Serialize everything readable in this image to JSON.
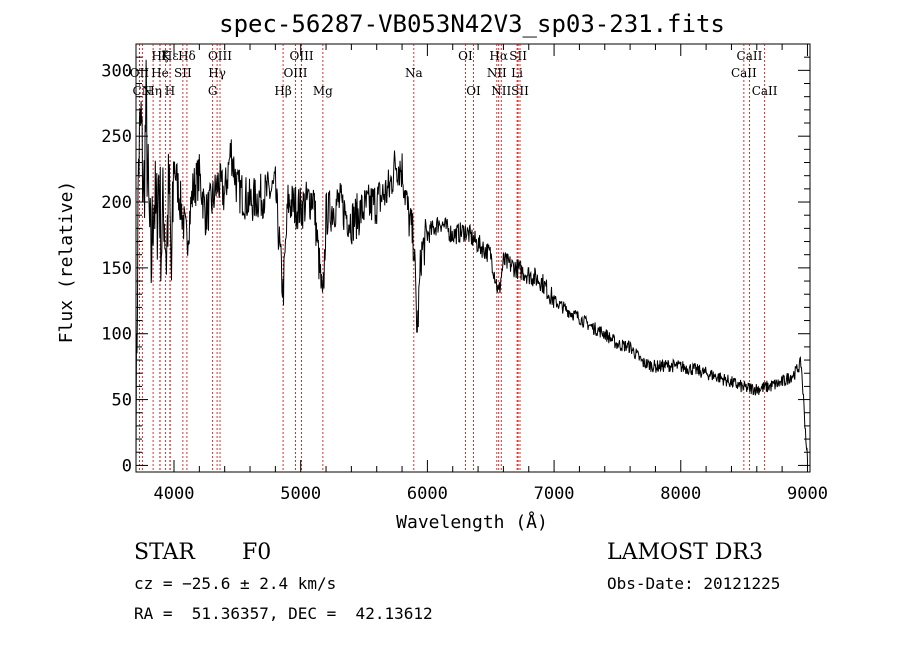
{
  "chart_data": {
    "type": "line",
    "title": "spec-56287-VB053N42V3_sp03-231.fits",
    "xlabel": "Wavelength (Å)",
    "ylabel": "Flux (relative)",
    "xlim": [
      3700,
      9020
    ],
    "ylim": [
      -5,
      320
    ],
    "xticks": [
      4000,
      5000,
      6000,
      7000,
      8000,
      9000
    ],
    "yticks": [
      0,
      50,
      100,
      150,
      200,
      250,
      300
    ],
    "line_color": "#000000",
    "marker_color": "#cc0000",
    "spectrum": {
      "x": [
        3700,
        3720,
        3740,
        3760,
        3780,
        3800,
        3820,
        3840,
        3860,
        3880,
        3900,
        3920,
        3940,
        3960,
        3980,
        4000,
        4050,
        4100,
        4150,
        4200,
        4250,
        4300,
        4350,
        4400,
        4450,
        4500,
        4600,
        4700,
        4800,
        4861,
        4900,
        5000,
        5100,
        5175,
        5200,
        5300,
        5400,
        5500,
        5600,
        5700,
        5750,
        5800,
        5850,
        5893,
        5920,
        5950,
        6000,
        6100,
        6200,
        6300,
        6400,
        6500,
        6563,
        6600,
        6700,
        6800,
        6900,
        7000,
        7100,
        7200,
        7300,
        7400,
        7500,
        7600,
        7700,
        7800,
        7900,
        8000,
        8100,
        8200,
        8300,
        8400,
        8500,
        8600,
        8700,
        8800,
        8900,
        8950,
        9000
      ],
      "y": [
        20,
        230,
        260,
        200,
        270,
        190,
        150,
        210,
        180,
        220,
        170,
        200,
        160,
        210,
        140,
        230,
        200,
        170,
        210,
        220,
        190,
        200,
        215,
        205,
        240,
        210,
        200,
        205,
        210,
        130,
        200,
        195,
        205,
        120,
        190,
        200,
        185,
        195,
        200,
        210,
        230,
        225,
        190,
        170,
        100,
        160,
        175,
        185,
        175,
        178,
        168,
        160,
        130,
        155,
        150,
        145,
        140,
        125,
        118,
        112,
        105,
        100,
        92,
        90,
        78,
        75,
        76,
        75,
        73,
        70,
        67,
        63,
        59,
        58,
        60,
        63,
        70,
        78,
        3
      ]
    },
    "lines": [
      {
        "label": "Hε",
        "wave": 3970,
        "row": 1
      },
      {
        "label": "OII",
        "wave": 3727,
        "row": 2
      },
      {
        "label": "CN",
        "wave": 3750,
        "row": 3
      },
      {
        "label": "Hη",
        "wave": 3835,
        "row": 3
      },
      {
        "label": "Hζ",
        "wave": 3889,
        "row": 1
      },
      {
        "label": "He",
        "wave": 3889,
        "row": 2
      },
      {
        "label": "K",
        "wave": 3934,
        "row": 1
      },
      {
        "label": "H",
        "wave": 3968,
        "row": 3
      },
      {
        "label": "SII",
        "wave": 4070,
        "row": 2
      },
      {
        "label": "Hδ",
        "wave": 4102,
        "row": 1
      },
      {
        "label": "OIII",
        "wave": 4363,
        "row": 1
      },
      {
        "label": "Hγ",
        "wave": 4340,
        "row": 2
      },
      {
        "label": "G",
        "wave": 4305,
        "row": 3
      },
      {
        "label": "Hβ",
        "wave": 4861,
        "row": 3
      },
      {
        "label": "OIII",
        "wave": 4959,
        "row": 2
      },
      {
        "label": "OIII",
        "wave": 5007,
        "row": 1
      },
      {
        "label": "Mg",
        "wave": 5175,
        "row": 3
      },
      {
        "label": "Na",
        "wave": 5893,
        "row": 2
      },
      {
        "label": "OI",
        "wave": 6300,
        "row": 1
      },
      {
        "label": "OI",
        "wave": 6364,
        "row": 3
      },
      {
        "label": "NII",
        "wave": 6548,
        "row": 2
      },
      {
        "label": "Hα",
        "wave": 6563,
        "row": 1
      },
      {
        "label": "NII",
        "wave": 6583,
        "row": 3
      },
      {
        "label": "SII",
        "wave": 6716,
        "row": 1
      },
      {
        "label": "Li",
        "wave": 6708,
        "row": 2
      },
      {
        "label": "SII",
        "wave": 6731,
        "row": 3
      },
      {
        "label": "CaII",
        "wave": 8498,
        "row": 2
      },
      {
        "label": "CaII",
        "wave": 8542,
        "row": 1
      },
      {
        "label": "CaII",
        "wave": 8662,
        "row": 3
      }
    ]
  },
  "info": {
    "class": "STAR",
    "subclass": "F0",
    "cz": "cz = −25.6 ± 2.4 km/s",
    "coords": "RA =  51.36357, DEC =  42.13612",
    "survey": "LAMOST DR3",
    "obs_date": "Obs-Date: 20121225"
  }
}
